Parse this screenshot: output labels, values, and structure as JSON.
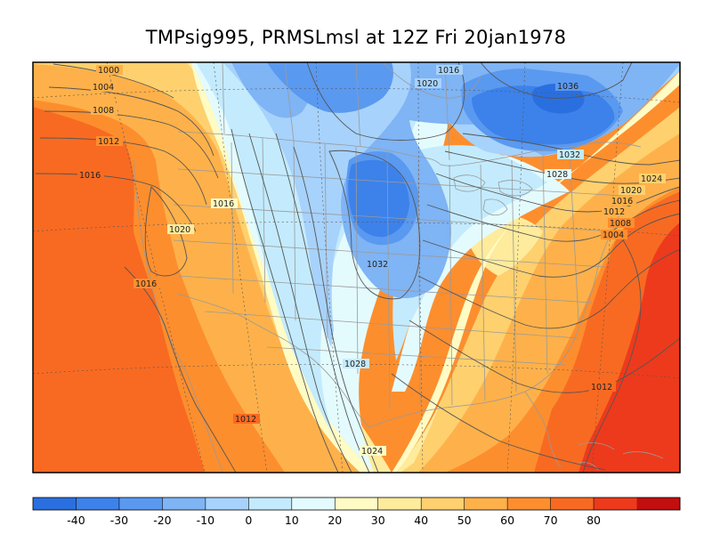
{
  "title": "TMPsig995, PRMSLmsl at 12Z Fri 20jan1978",
  "colorbar": {
    "colors": [
      "#2a6fe0",
      "#3c82ea",
      "#5a99f0",
      "#7fb4f5",
      "#a7d2fb",
      "#c3ebfd",
      "#e4fbfe",
      "#fffbc5",
      "#feeb9c",
      "#fed06e",
      "#feb14a",
      "#fd8e2e",
      "#f86a22",
      "#ed3a1c",
      "#c20e0e"
    ],
    "ticks": [
      "-40",
      "-30",
      "-20",
      "-10",
      "0",
      "10",
      "20",
      "30",
      "40",
      "50",
      "60",
      "70",
      "80"
    ]
  },
  "isobar_labels": [
    {
      "text": "1000"
    },
    {
      "text": "1004"
    },
    {
      "text": "1008"
    },
    {
      "text": "1012"
    },
    {
      "text": "1016"
    },
    {
      "text": "1016"
    },
    {
      "text": "1020"
    },
    {
      "text": "1016"
    },
    {
      "text": "1016"
    },
    {
      "text": "1020"
    },
    {
      "text": "1036"
    },
    {
      "text": "1032"
    },
    {
      "text": "1028"
    },
    {
      "text": "1024"
    },
    {
      "text": "1020"
    },
    {
      "text": "1016"
    },
    {
      "text": "1012"
    },
    {
      "text": "1008"
    },
    {
      "text": "1004"
    },
    {
      "text": "1032"
    },
    {
      "text": "1028"
    },
    {
      "text": "1012"
    },
    {
      "text": "1024"
    },
    {
      "text": "1012"
    }
  ]
}
